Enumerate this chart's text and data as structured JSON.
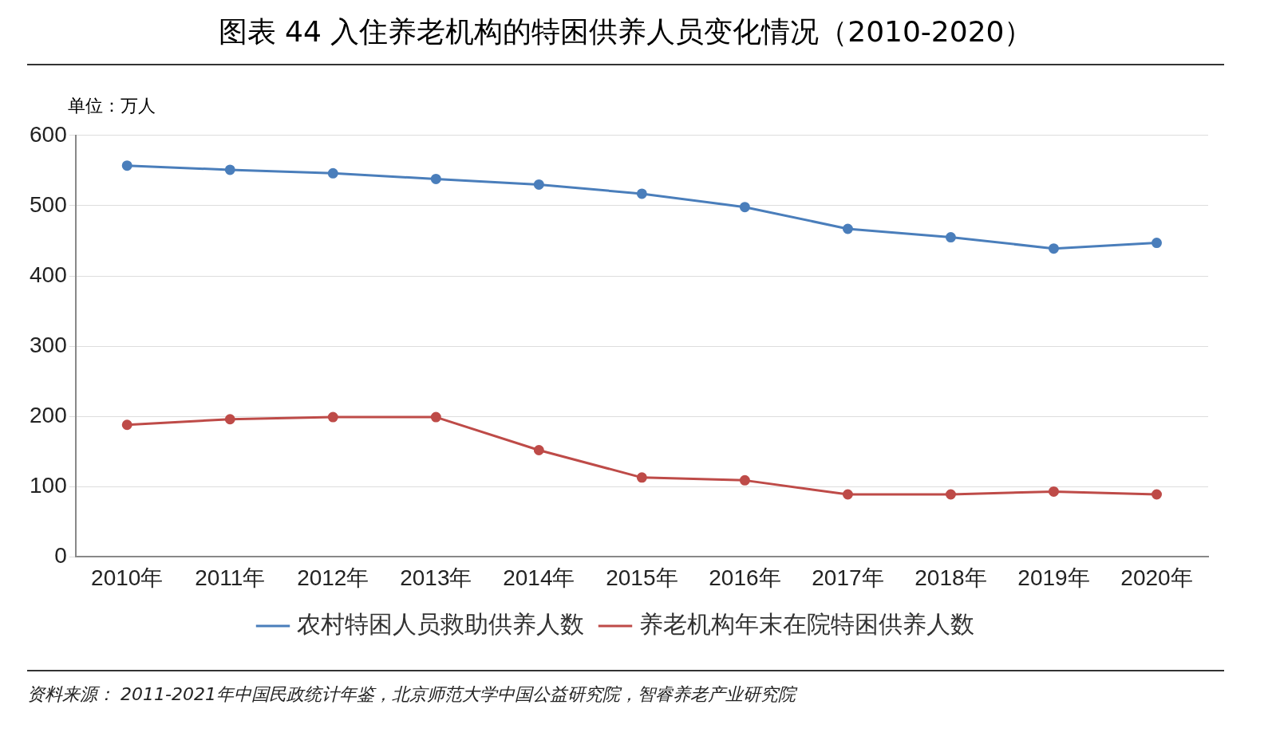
{
  "chart_data": {
    "type": "line",
    "title": "图表 44 入住养老机构的特困供养人员变化情况（2010-2020）",
    "ylabel": "单位：万人",
    "categories": [
      "2010年",
      "2011年",
      "2012年",
      "2013年",
      "2014年",
      "2015年",
      "2016年",
      "2017年",
      "2018年",
      "2019年",
      "2020年"
    ],
    "series": [
      {
        "name": "农村特困人员救助供养人数",
        "color": "#4a7ebb",
        "values": [
          557,
          551,
          546,
          538,
          530,
          517,
          498,
          467,
          455,
          439,
          447
        ]
      },
      {
        "name": "养老机构年末在院特困供养人数",
        "color": "#be4b48",
        "values": [
          188,
          196,
          199,
          199,
          152,
          113,
          109,
          89,
          89,
          93,
          89
        ]
      }
    ],
    "ylim": [
      0,
      600
    ],
    "yticks": [
      0,
      100,
      200,
      300,
      400,
      500,
      600
    ],
    "grid": "y",
    "legend": "bottom",
    "marker": "circle",
    "line_style": "solid",
    "annotations": [
      "资料来源： 2011-2021年中国民政统计年鉴，北京师范大学中国公益研究院，智睿养老产业研究院"
    ]
  }
}
